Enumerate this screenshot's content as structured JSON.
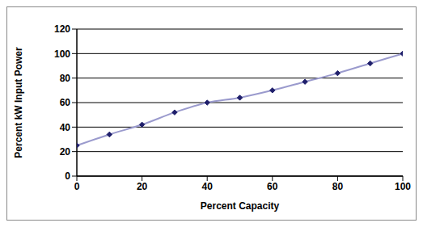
{
  "chart_data": {
    "type": "line",
    "x_label": "Percent Capacity",
    "y_label": "Percent kW Input Power",
    "x": [
      0,
      10,
      20,
      30,
      40,
      50,
      60,
      70,
      80,
      90,
      100
    ],
    "values": [
      25,
      34,
      42,
      52,
      60,
      64,
      70,
      77,
      84,
      92,
      100
    ],
    "color": "#9a9acd",
    "marker": "diamond",
    "xlim": [
      0,
      100
    ],
    "xticks": [
      0,
      20,
      40,
      60,
      80,
      100
    ],
    "ylim": [
      0,
      120
    ],
    "yticks": [
      0,
      20,
      40,
      60,
      80,
      100,
      120
    ],
    "grid": true
  }
}
